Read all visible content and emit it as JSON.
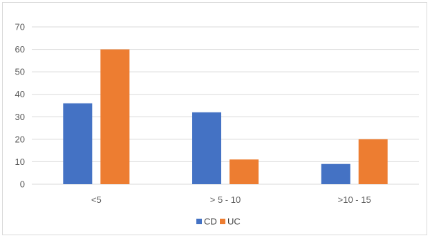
{
  "chart_data": {
    "type": "bar",
    "categories": [
      "<5",
      "> 5 - 10",
      ">10 - 15"
    ],
    "series": [
      {
        "name": "CD",
        "values": [
          36,
          32,
          9
        ],
        "color": "#4472c4"
      },
      {
        "name": "UC",
        "values": [
          60,
          11,
          20
        ],
        "color": "#ed7d31"
      }
    ],
    "ylim": [
      0,
      70
    ],
    "yticks": [
      0,
      10,
      20,
      30,
      40,
      50,
      60,
      70
    ],
    "grid": true,
    "gridline_color": "#d9d9d9",
    "legend_position": "bottom"
  }
}
